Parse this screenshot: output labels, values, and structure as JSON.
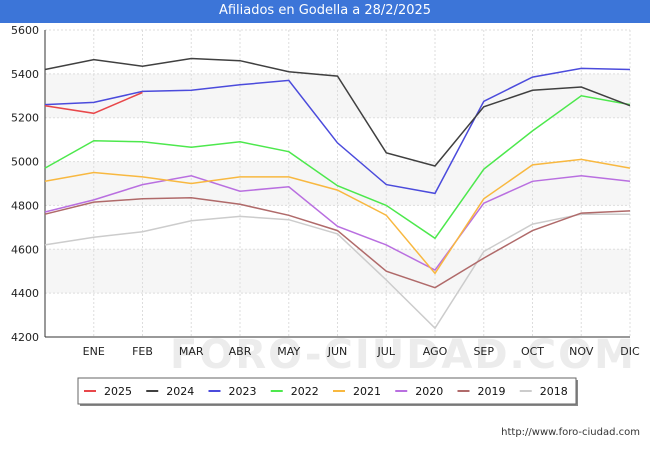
{
  "title": "Afiliados en Godella a 28/2/2025",
  "footer_url": "http://www.foro-ciudad.com",
  "watermark": "FORO-CIUDAD.COM",
  "chart_data": {
    "type": "line",
    "title": "Afiliados en Godella a 28/2/2025",
    "categories": [
      "DIC",
      "ENE",
      "FEB",
      "MAR",
      "ABR",
      "MAY",
      "JUN",
      "JUL",
      "AGO",
      "SEP",
      "OCT",
      "NOV",
      "DIC"
    ],
    "ylim": [
      4200,
      5600
    ],
    "yticks": [
      4200,
      4400,
      4600,
      4800,
      5000,
      5200,
      5400,
      5600
    ],
    "grid": true,
    "legend_position": "bottom",
    "series": [
      {
        "name": "2025",
        "color": "#e8474a",
        "values": [
          5255,
          5220,
          5315,
          null,
          null,
          null,
          null,
          null,
          null,
          null,
          null,
          null,
          null
        ]
      },
      {
        "name": "2024",
        "color": "#404040",
        "values": [
          5420,
          5465,
          5435,
          5470,
          5460,
          5410,
          5390,
          5040,
          4980,
          5250,
          5325,
          5340,
          5255
        ]
      },
      {
        "name": "2023",
        "color": "#4b4bdc",
        "values": [
          5260,
          5270,
          5320,
          5325,
          5350,
          5370,
          5085,
          4895,
          4855,
          5275,
          5385,
          5425,
          5420
        ]
      },
      {
        "name": "2022",
        "color": "#4de84d",
        "values": [
          4970,
          5095,
          5090,
          5065,
          5090,
          5045,
          4890,
          4800,
          4650,
          4965,
          5140,
          5300,
          5260
        ]
      },
      {
        "name": "2021",
        "color": "#f8b840",
        "values": [
          4910,
          4950,
          4930,
          4900,
          4930,
          4930,
          4870,
          4755,
          4490,
          4830,
          4985,
          5010,
          4970
        ]
      },
      {
        "name": "2020",
        "color": "#b96fe0",
        "values": [
          4770,
          4825,
          4895,
          4935,
          4865,
          4885,
          4705,
          4620,
          4505,
          4810,
          4910,
          4935,
          4910
        ]
      },
      {
        "name": "2019",
        "color": "#b06a6a",
        "values": [
          4760,
          4815,
          4830,
          4835,
          4805,
          4755,
          4685,
          4500,
          4425,
          4560,
          4685,
          4765,
          4775
        ]
      },
      {
        "name": "2018",
        "color": "#cccccc",
        "values": [
          4620,
          4655,
          4680,
          4730,
          4750,
          4735,
          4670,
          4460,
          4240,
          4590,
          4715,
          4760,
          4760
        ]
      }
    ]
  }
}
